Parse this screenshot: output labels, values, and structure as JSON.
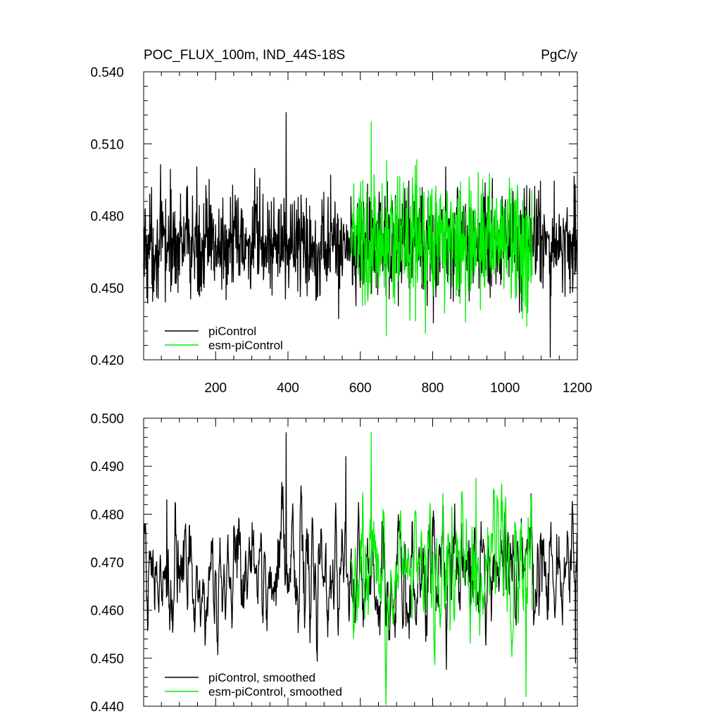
{
  "chart_data": [
    {
      "type": "line",
      "title": "POC_FLUX_100m, IND_44S-18S",
      "units": "PgC/y",
      "xlabel": "",
      "ylabel": "",
      "xlim": [
        1,
        1200
      ],
      "ylim": [
        0.42,
        0.54
      ],
      "x_ticks": [
        200,
        400,
        600,
        800,
        1000,
        1200
      ],
      "x_tick_labels": [
        "200",
        "400",
        "600",
        "800",
        "1000",
        "1200"
      ],
      "y_ticks": [
        0.42,
        0.45,
        0.48,
        0.51,
        0.54
      ],
      "y_tick_labels": [
        "0.420",
        "0.450",
        "0.480",
        "0.510",
        "0.540"
      ],
      "legend_position": "bottom-left",
      "series": [
        {
          "name": "piControl",
          "color": "#000000",
          "x_range": [
            1,
            1200
          ],
          "mean": 0.468,
          "noise_amplitude": 0.0115,
          "key_points": [
            [
              1,
              0.458
            ],
            [
              395,
              0.523
            ],
            [
              574,
              0.488
            ],
            [
              1125,
              0.421
            ],
            [
              1200,
              0.456
            ]
          ]
        },
        {
          "name": "esm-piControl",
          "color": "#00ee00",
          "x_range": [
            575,
            1075
          ],
          "mean": 0.47,
          "noise_amplitude": 0.0135,
          "key_points": [
            [
              575,
              0.475
            ],
            [
              630,
              0.519
            ],
            [
              780,
              0.431
            ],
            [
              1060,
              0.434
            ],
            [
              1075,
              0.455
            ]
          ]
        }
      ]
    },
    {
      "type": "line",
      "title": "",
      "xlabel": "",
      "ylabel": "",
      "xlim": [
        1,
        1200
      ],
      "ylim": [
        0.44,
        0.5
      ],
      "x_ticks": [
        200,
        400,
        600,
        800,
        1000,
        1200
      ],
      "y_ticks": [
        0.44,
        0.45,
        0.46,
        0.47,
        0.48,
        0.49,
        0.5
      ],
      "y_tick_labels": [
        "0.440",
        "0.450",
        "0.460",
        "0.470",
        "0.480",
        "0.490",
        "0.500"
      ],
      "legend_position": "bottom-left",
      "series": [
        {
          "name": "piControl, smoothed",
          "color": "#000000",
          "x_range": [
            1,
            1200
          ],
          "mean": 0.468,
          "noise_amplitude": 0.0075,
          "key_points": [
            [
              1,
              0.46
            ],
            [
              65,
              0.483
            ],
            [
              395,
              0.497
            ],
            [
              560,
              0.492
            ],
            [
              1195,
              0.449
            ],
            [
              1200,
              0.464
            ]
          ]
        },
        {
          "name": "esm-piControl, smoothed",
          "color": "#00ee00",
          "x_range": [
            575,
            1075
          ],
          "mean": 0.468,
          "noise_amplitude": 0.0085,
          "key_points": [
            [
              575,
              0.47
            ],
            [
              630,
              0.497
            ],
            [
              920,
              0.4875
            ],
            [
              1058,
              0.442
            ],
            [
              1075,
              0.46
            ]
          ]
        }
      ]
    }
  ]
}
